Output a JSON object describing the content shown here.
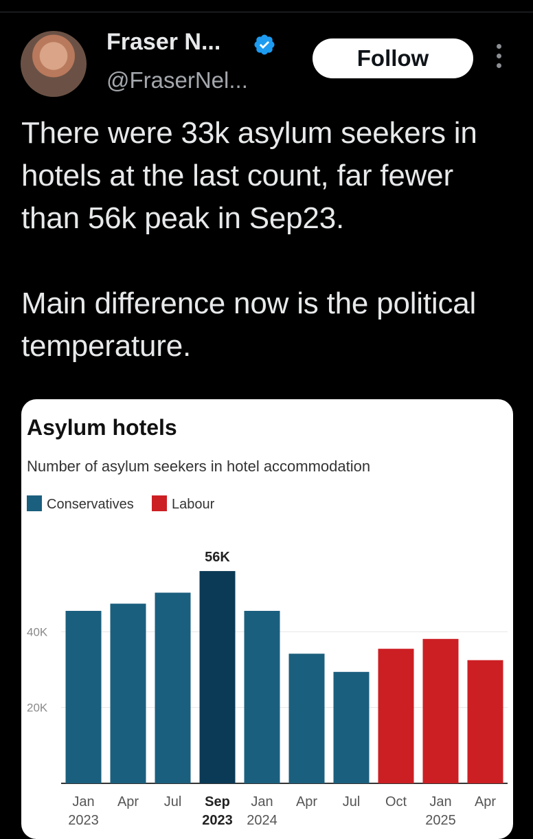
{
  "author": {
    "name": "Fraser N...",
    "handle": "@FraserNel...",
    "verified_icon": "verified-badge-icon"
  },
  "actions": {
    "follow_label": "Follow",
    "more_icon": "more-options-icon"
  },
  "tweet": {
    "paragraphs": [
      "There were 33k asylum seekers in hotels at the last count, far fewer than 56k peak in Sep23.",
      "Main difference now is the political temperature."
    ]
  },
  "colors": {
    "conservatives": "#1b5f7e",
    "conservatives_peak": "#0b3a56",
    "labour": "#cc1f24",
    "follow_bg": "#ffffff",
    "verified": "#1d9bf0"
  },
  "chart_data": {
    "type": "bar",
    "title": "Asylum hotels",
    "subtitle": "Number of asylum seekers in hotel accommodation",
    "legend": [
      "Conservatives",
      "Labour"
    ],
    "categories": [
      "Jan 2023",
      "Apr",
      "Jul",
      "Sep 2023",
      "Jan 2024",
      "Apr",
      "Jul",
      "Oct",
      "Jan 2025",
      "Apr"
    ],
    "x_labels": [
      [
        "Jan",
        "2023"
      ],
      [
        "Apr",
        ""
      ],
      [
        "Jul",
        ""
      ],
      [
        "Sep",
        "2023"
      ],
      [
        "Jan",
        "2024"
      ],
      [
        "Apr",
        ""
      ],
      [
        "Jul",
        ""
      ],
      [
        "Oct",
        ""
      ],
      [
        "Jan",
        "2025"
      ],
      [
        "Apr",
        ""
      ]
    ],
    "bold_categories": [
      3
    ],
    "values": [
      45500,
      47400,
      50300,
      56000,
      45500,
      34200,
      29400,
      35500,
      38100,
      32500
    ],
    "party": [
      "Conservatives",
      "Conservatives",
      "Conservatives",
      "Conservatives",
      "Conservatives",
      "Conservatives",
      "Conservatives",
      "Labour",
      "Labour",
      "Labour"
    ],
    "highlight_index": 3,
    "highlight_label": "56K",
    "y_ticks": [
      20000,
      40000
    ],
    "y_tick_labels": [
      "20K",
      "40K"
    ],
    "ylim": [
      0,
      60000
    ],
    "grid": true,
    "legend_position": "top-left"
  }
}
